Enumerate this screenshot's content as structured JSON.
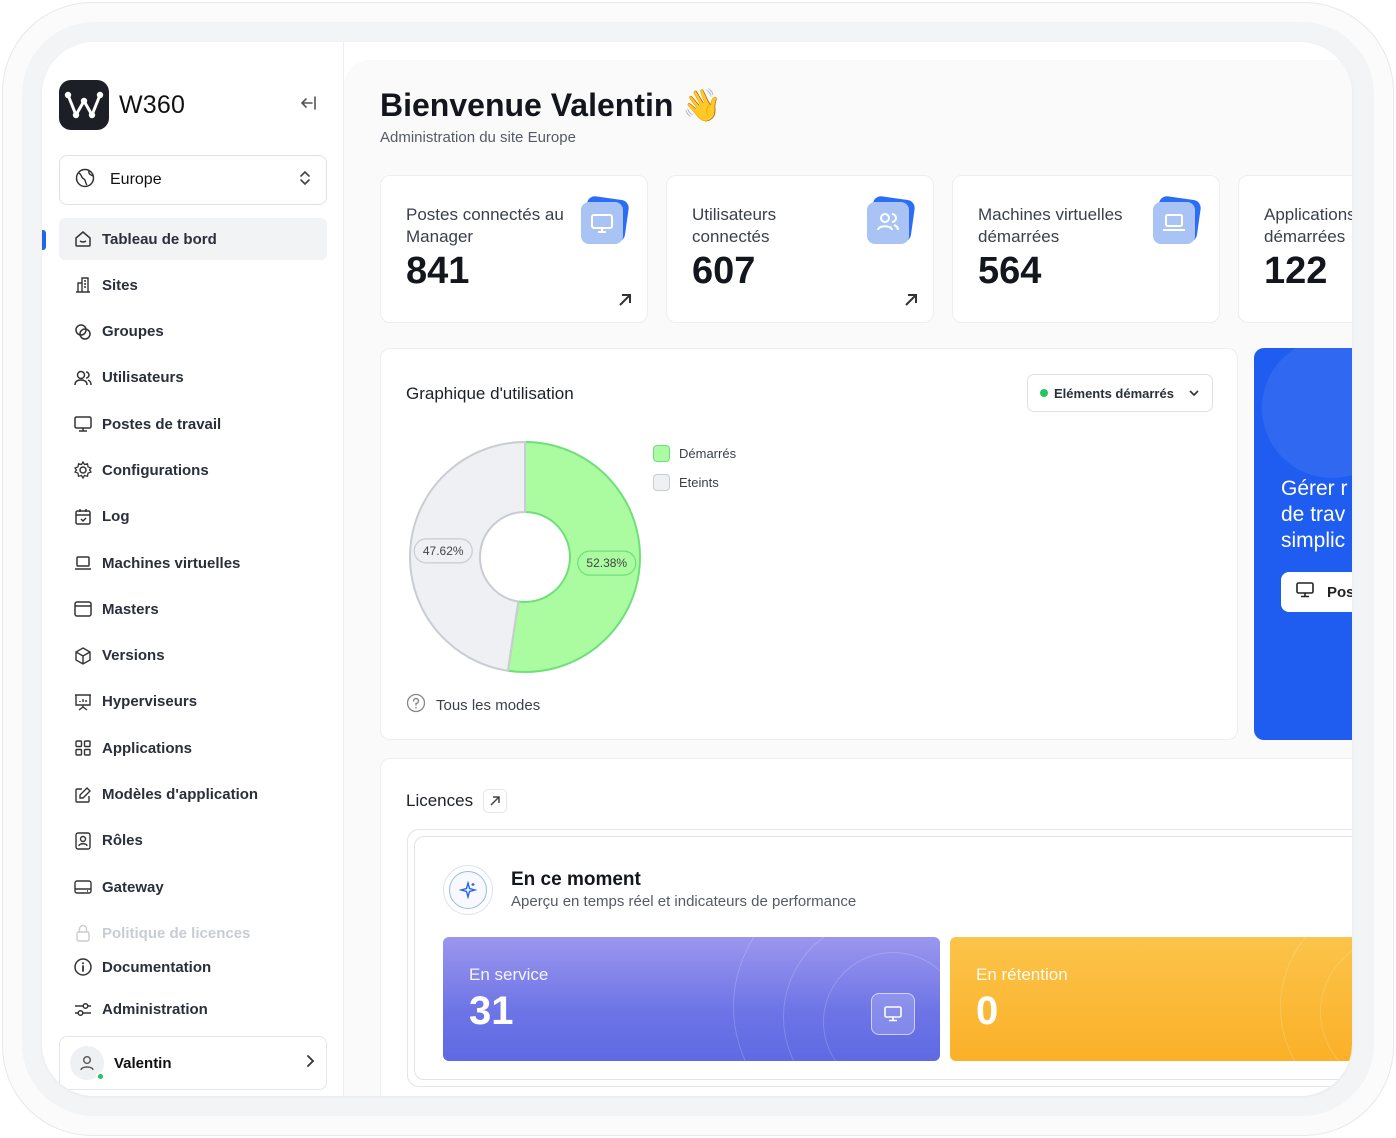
{
  "app": {
    "name": "W360"
  },
  "site_select": {
    "value": "Europe"
  },
  "sidebar": {
    "items": [
      {
        "label": "Tableau de bord",
        "icon": "home-icon",
        "active": true
      },
      {
        "label": "Sites",
        "icon": "building-icon"
      },
      {
        "label": "Groupes",
        "icon": "groups-icon"
      },
      {
        "label": "Utilisateurs",
        "icon": "users-icon"
      },
      {
        "label": "Postes de travail",
        "icon": "monitor-icon"
      },
      {
        "label": "Configurations",
        "icon": "gear-icon"
      },
      {
        "label": "Log",
        "icon": "calendar-icon"
      },
      {
        "label": "Machines virtuelles",
        "icon": "laptop-icon"
      },
      {
        "label": "Masters",
        "icon": "window-icon"
      },
      {
        "label": "Versions",
        "icon": "package-icon"
      },
      {
        "label": "Hyperviseurs",
        "icon": "presentation-icon"
      },
      {
        "label": "Applications",
        "icon": "grid-icon"
      },
      {
        "label": "Modèles d'application",
        "icon": "edit-icon"
      },
      {
        "label": "Rôles",
        "icon": "badge-icon"
      },
      {
        "label": "Gateway",
        "icon": "drive-icon"
      },
      {
        "label": "Politique de licences",
        "icon": "lock-icon",
        "faded": true
      }
    ],
    "bottom": [
      {
        "label": "Documentation",
        "icon": "info-icon"
      },
      {
        "label": "Administration",
        "icon": "sliders-icon"
      }
    ],
    "user": {
      "name": "Valentin",
      "status": "online"
    }
  },
  "header": {
    "title": "Bienvenue Valentin",
    "emoji": "👋",
    "subtitle": "Administration du site Europe"
  },
  "stats": [
    {
      "label": "Postes connectés au Manager",
      "value": "841",
      "icon": "monitor-icon"
    },
    {
      "label": "Utilisateurs connectés",
      "value": "607",
      "icon": "users-icon"
    },
    {
      "label": "Machines virtuelles démarrées",
      "value": "564",
      "icon": "laptop-icon"
    },
    {
      "label": "Applications démarrées",
      "value": "122",
      "icon": "grid-icon"
    }
  ],
  "usage_chart": {
    "title": "Graphique d'utilisation",
    "filter_label": "Eléments démarrés",
    "footer": "Tous les modes"
  },
  "chart_data": {
    "type": "pie",
    "title": "Graphique d'utilisation",
    "categories": [
      "Démarrés",
      "Eteints"
    ],
    "values": [
      52.38,
      47.62
    ],
    "labels": [
      "52.38%",
      "47.62%"
    ],
    "colors": [
      "#abfca0",
      "#eef0f4"
    ],
    "stroke_colors": [
      "#6ee07a",
      "#c9ccd2"
    ],
    "legend_position": "right"
  },
  "promo": {
    "text_lines": [
      "Gérer r",
      "de trav",
      "simplic"
    ],
    "button_label": "Pos"
  },
  "licences": {
    "title": "Licences",
    "moment_title": "En ce moment",
    "moment_subtitle": "Aperçu en temps réel et indicateurs de performance",
    "kpis": [
      {
        "label": "En service",
        "value": "31"
      },
      {
        "label": "En rétention",
        "value": "0"
      }
    ]
  }
}
